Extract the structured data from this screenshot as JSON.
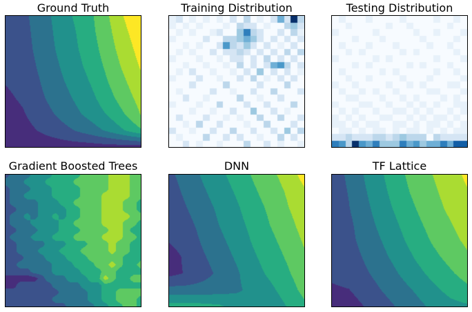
{
  "figure": {
    "background": "#ffffff",
    "axes_border_color": "#000000"
  },
  "palettes": {
    "viridis9": [
      "#440154",
      "#472d7b",
      "#3b528b",
      "#2c728e",
      "#21918c",
      "#27ad81",
      "#5ec962",
      "#aadc32",
      "#fde725"
    ],
    "blues10": [
      "#f7fbff",
      "#e7f1fa",
      "#d5e5f4",
      "#bcd7eb",
      "#9dc9e1",
      "#6fafd6",
      "#4a98c9",
      "#2e7ebc",
      "#125ea6",
      "#08306b"
    ]
  },
  "chart_data": [
    {
      "title": "Ground Truth",
      "type": "contourf",
      "palette": "viridis9",
      "levels": 9,
      "grid": [
        [
          0.28,
          0.3,
          0.39,
          0.47,
          0.56,
          0.64,
          0.76,
          0.89,
          0.99
        ],
        [
          0.27,
          0.29,
          0.38,
          0.46,
          0.54,
          0.63,
          0.74,
          0.86,
          0.96
        ],
        [
          0.26,
          0.28,
          0.37,
          0.45,
          0.53,
          0.61,
          0.72,
          0.83,
          0.93
        ],
        [
          0.25,
          0.27,
          0.35,
          0.43,
          0.51,
          0.59,
          0.69,
          0.8,
          0.9
        ],
        [
          0.23,
          0.26,
          0.33,
          0.41,
          0.48,
          0.56,
          0.66,
          0.76,
          0.86
        ],
        [
          0.2,
          0.24,
          0.31,
          0.38,
          0.45,
          0.52,
          0.62,
          0.72,
          0.82
        ],
        [
          0.17,
          0.21,
          0.28,
          0.34,
          0.41,
          0.48,
          0.56,
          0.66,
          0.78
        ],
        [
          0.14,
          0.18,
          0.23,
          0.28,
          0.33,
          0.39,
          0.46,
          0.55,
          0.65
        ],
        [
          0.12,
          0.13,
          0.15,
          0.16,
          0.17,
          0.17,
          0.18,
          0.18,
          0.18
        ]
      ]
    },
    {
      "title": "Training Distribution",
      "type": "heatmap",
      "palette": "blues10",
      "cells": [
        "12010101020301025293",
        "10101000103220100342",
        "01010012004732002031",
        "10000200334542020202",
        "00101002632420201020",
        "01010020223202020303",
        "10001001022020302020",
        "00100100103020256302",
        "01020010010204020201",
        "10002001002030102020",
        "00020000300002000300",
        "01000020010020030002",
        "00200100003001002000",
        "10001003000200200030",
        "00010010020040020100",
        "02000200101003003002",
        "00103002000100300020",
        "20010020030020020403",
        "01000300202001003020",
        "00201001000300201001"
      ]
    },
    {
      "title": "Testing Distribution",
      "type": "heatmap",
      "palette": "blues10",
      "cells": [
        "01000100001000010010",
        "00100000100100000100",
        "10000010000010010001",
        "00010001000001000010",
        "01000100010000100100",
        "00101000001010000010",
        "10000010100000010001",
        "00010100000101000100",
        "01000001010000010010",
        "00100100001000100001",
        "10010000100101000110",
        "01001010010000110001",
        "00110001001010001010",
        "10001100100101010011",
        "01010010011010100101",
        "10101001100101011010",
        "11010110011010110101",
        "01101011010110101011",
        "22322233234333032222",
        "76396574447564557588"
      ]
    },
    {
      "title": "Gradient Boosted Trees",
      "type": "contourf_blocky",
      "palette": "viridis9",
      "levels": 9,
      "cells": [
        "23334445555666677766",
        "33344455556666677766",
        "23334445555666677766",
        "23344445555666777766",
        "23333444556666777665",
        "22333444455666777665",
        "23343445455666777766",
        "23334444556666777665",
        "22333444555666677655",
        "23334445556666777665",
        "22333344455566676655",
        "22333444555666676655",
        "22233344455566666555",
        "22333334445556676556",
        "22223334444555665555",
        "11111233344455765566",
        "11222223333444555555",
        "22222222333344556666",
        "22222223333344556665",
        "22222222233334455665"
      ]
    },
    {
      "title": "DNN",
      "type": "contourf",
      "palette": "viridis9",
      "levels": 9,
      "grid": [
        [
          0.31,
          0.38,
          0.46,
          0.53,
          0.6,
          0.68,
          0.75,
          0.82,
          0.93
        ],
        [
          0.28,
          0.36,
          0.43,
          0.5,
          0.57,
          0.65,
          0.72,
          0.79,
          0.87
        ],
        [
          0.25,
          0.33,
          0.4,
          0.47,
          0.54,
          0.62,
          0.69,
          0.77,
          0.84
        ],
        [
          0.23,
          0.3,
          0.37,
          0.45,
          0.52,
          0.59,
          0.67,
          0.74,
          0.82
        ],
        [
          0.23,
          0.27,
          0.35,
          0.42,
          0.49,
          0.57,
          0.64,
          0.71,
          0.79
        ],
        [
          0.18,
          0.24,
          0.32,
          0.39,
          0.46,
          0.54,
          0.61,
          0.68,
          0.76
        ],
        [
          0.19,
          0.23,
          0.29,
          0.36,
          0.43,
          0.51,
          0.58,
          0.65,
          0.73
        ],
        [
          0.37,
          0.37,
          0.38,
          0.4,
          0.43,
          0.47,
          0.53,
          0.61,
          0.7
        ],
        [
          0.6,
          0.6,
          0.59,
          0.57,
          0.5,
          0.46,
          0.48,
          0.56,
          0.64
        ]
      ]
    },
    {
      "title": "TF Lattice",
      "type": "contourf",
      "palette": "viridis9",
      "levels": 9,
      "grid": [
        [
          0.29,
          0.35,
          0.46,
          0.55,
          0.64,
          0.72,
          0.78,
          0.84,
          0.91
        ],
        [
          0.28,
          0.34,
          0.44,
          0.53,
          0.62,
          0.7,
          0.76,
          0.82,
          0.88
        ],
        [
          0.27,
          0.33,
          0.42,
          0.51,
          0.59,
          0.67,
          0.74,
          0.8,
          0.85
        ],
        [
          0.26,
          0.31,
          0.4,
          0.48,
          0.56,
          0.64,
          0.71,
          0.77,
          0.83
        ],
        [
          0.25,
          0.3,
          0.38,
          0.45,
          0.53,
          0.61,
          0.68,
          0.74,
          0.8
        ],
        [
          0.23,
          0.28,
          0.35,
          0.42,
          0.49,
          0.57,
          0.64,
          0.7,
          0.76
        ],
        [
          0.24,
          0.26,
          0.32,
          0.38,
          0.45,
          0.52,
          0.59,
          0.65,
          0.71
        ],
        [
          0.21,
          0.22,
          0.28,
          0.34,
          0.4,
          0.46,
          0.53,
          0.59,
          0.64
        ],
        [
          0.15,
          0.17,
          0.23,
          0.29,
          0.35,
          0.41,
          0.47,
          0.52,
          0.54
        ]
      ]
    }
  ]
}
